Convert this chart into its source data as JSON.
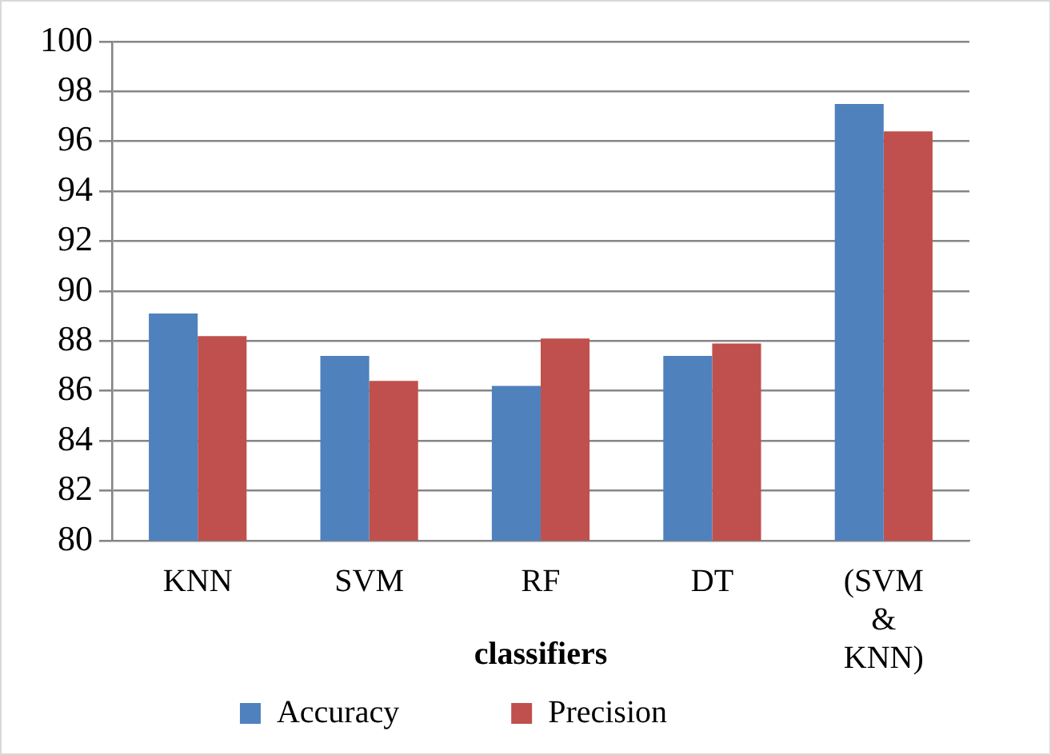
{
  "chart_data": {
    "type": "bar",
    "xlabel": "classifiers",
    "categories": [
      "KNN",
      "SVM",
      "RF",
      "DT",
      "(SVM & KNN)"
    ],
    "series": [
      {
        "name": "Accuracy",
        "color": "#4f81bd",
        "values": [
          89.1,
          87.4,
          86.2,
          87.4,
          97.5
        ]
      },
      {
        "name": "Precision",
        "color": "#c0504d",
        "values": [
          88.2,
          86.4,
          88.1,
          87.9,
          96.4
        ]
      }
    ],
    "ylim": [
      80,
      100
    ],
    "yticks": [
      80,
      82,
      84,
      86,
      88,
      90,
      92,
      94,
      96,
      98,
      100
    ],
    "grid": "y",
    "legend": "bottom"
  }
}
